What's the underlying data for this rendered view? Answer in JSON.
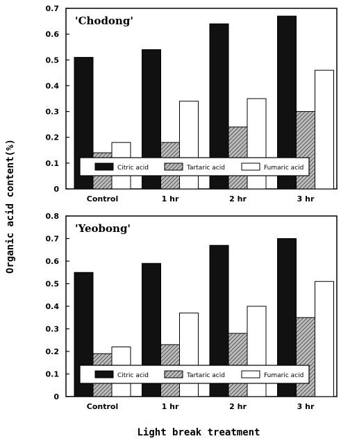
{
  "ylabel": "Organic acid content(%)",
  "xlabel": "Light break treatment",
  "colors": {
    "citric": "#111111",
    "tartaric": "hatched-gray",
    "fumaric": "#ffffff"
  },
  "chart_data": [
    {
      "type": "bar",
      "title": "'Chodong'",
      "categories": [
        "Control",
        "1 hr",
        "2 hr",
        "3 hr"
      ],
      "series": [
        {
          "name": "Citric acid",
          "values": [
            0.51,
            0.54,
            0.64,
            0.67
          ]
        },
        {
          "name": "Tartaric acid",
          "values": [
            0.14,
            0.18,
            0.24,
            0.3
          ]
        },
        {
          "name": "Fumaric acid",
          "values": [
            0.18,
            0.34,
            0.35,
            0.46
          ]
        }
      ],
      "ylim": [
        0,
        0.7
      ],
      "yticks": [
        "0",
        "0.1",
        "0.2",
        "0.3",
        "0.4",
        "0.5",
        "0.6",
        "0.7"
      ],
      "legend": "inside-bottom",
      "grid": false
    },
    {
      "type": "bar",
      "title": "'Yeobong'",
      "categories": [
        "Control",
        "1 hr",
        "2 hr",
        "3 hr"
      ],
      "series": [
        {
          "name": "Citric acid",
          "values": [
            0.55,
            0.59,
            0.67,
            0.7
          ]
        },
        {
          "name": "Tartaric acid",
          "values": [
            0.19,
            0.23,
            0.28,
            0.35
          ]
        },
        {
          "name": "Fumaric acid",
          "values": [
            0.22,
            0.37,
            0.4,
            0.51
          ]
        }
      ],
      "ylim": [
        0,
        0.8
      ],
      "yticks": [
        "0",
        "0.1",
        "0.2",
        "0.3",
        "0.4",
        "0.5",
        "0.6",
        "0.7",
        "0.8"
      ],
      "legend": "inside-bottom",
      "grid": false
    }
  ]
}
